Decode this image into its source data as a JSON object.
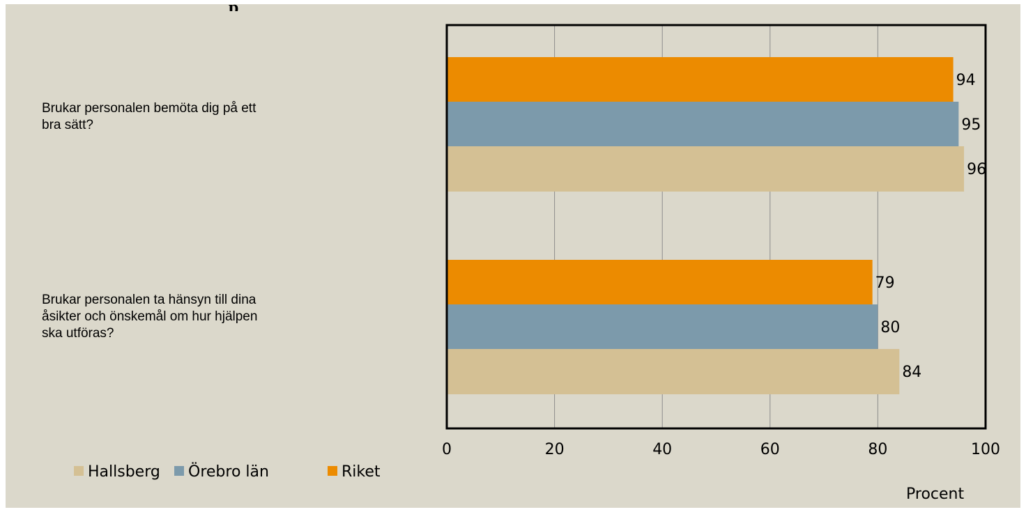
{
  "chart_data": {
    "type": "bar",
    "orientation": "horizontal",
    "title": "",
    "categories": [
      [
        "Brukar personalen bemöta dig på ett",
        "bra sätt?"
      ],
      [
        "Brukar personalen ta hänsyn till dina",
        "åsikter och önskemål om hur hjälpen",
        "ska utföras?"
      ]
    ],
    "series": [
      {
        "name": "Riket",
        "color": "#ec8b00",
        "values": [
          94,
          79
        ]
      },
      {
        "name": "Örebro län",
        "color": "#7c9aab",
        "values": [
          95,
          80
        ]
      },
      {
        "name": "Hallsberg",
        "color": "#d4c094",
        "values": [
          96,
          84
        ]
      }
    ],
    "legend_order": [
      "Hallsberg",
      "Örebro län",
      "Riket"
    ],
    "xlabel": "Procent",
    "xlim": [
      0,
      100
    ],
    "xticks": [
      0,
      20,
      40,
      60,
      80,
      100
    ],
    "grid": true,
    "legend_position": "bottom-left"
  }
}
